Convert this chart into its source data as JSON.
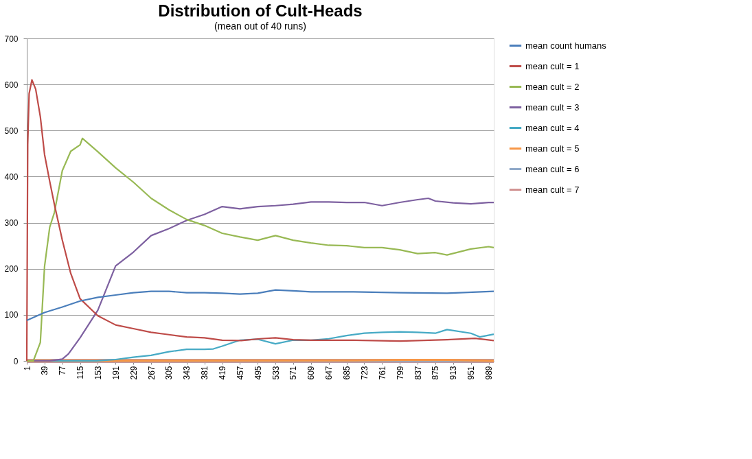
{
  "chart_data": {
    "type": "line",
    "title": "Distribution of Cult-Heads",
    "subtitle": "(mean out of 40 runs)",
    "xlim": [
      1,
      1000
    ],
    "xticks": [
      1,
      39,
      77,
      115,
      153,
      191,
      229,
      267,
      305,
      343,
      381,
      419,
      457,
      495,
      533,
      571,
      609,
      647,
      685,
      723,
      761,
      799,
      837,
      875,
      913,
      951,
      989
    ],
    "ylim": [
      0,
      700
    ],
    "yticks": [
      0,
      100,
      200,
      300,
      400,
      500,
      600,
      700
    ],
    "grid": "y",
    "legend": "right",
    "marker": "none",
    "line_style": "solid",
    "series": [
      {
        "name": "mean count humans",
        "color": "#4a7ebb",
        "x": [
          1,
          39,
          77,
          115,
          153,
          191,
          229,
          267,
          305,
          343,
          381,
          419,
          457,
          495,
          533,
          571,
          609,
          700,
          800,
          900,
          1000
        ],
        "values": [
          88,
          105,
          117,
          130,
          138,
          143,
          148,
          151,
          151,
          148,
          148,
          147,
          145,
          147,
          154,
          152,
          150,
          150,
          148,
          147,
          151
        ]
      },
      {
        "name": "mean cult = 1",
        "color": "#be4b48",
        "x": [
          1,
          3,
          6,
          12,
          20,
          30,
          39,
          50,
          60,
          77,
          95,
          115,
          153,
          191,
          229,
          267,
          305,
          343,
          381,
          419,
          460,
          500,
          533,
          571,
          609,
          700,
          800,
          900,
          960,
          1000
        ],
        "values": [
          0,
          470,
          580,
          610,
          590,
          530,
          448,
          390,
          340,
          262,
          190,
          135,
          98,
          78,
          70,
          62,
          57,
          52,
          50,
          45,
          44,
          48,
          50,
          46,
          45,
          45,
          43,
          46,
          49,
          44
        ]
      },
      {
        "name": "mean cult = 2",
        "color": "#98b954",
        "x": [
          1,
          15,
          30,
          39,
          50,
          60,
          77,
          95,
          115,
          120,
          153,
          191,
          229,
          267,
          305,
          343,
          381,
          419,
          457,
          495,
          533,
          571,
          609,
          647,
          685,
          723,
          761,
          799,
          837,
          875,
          900,
          951,
          989,
          1000
        ],
        "values": [
          0,
          0,
          40,
          205,
          290,
          322,
          413,
          455,
          469,
          483,
          454,
          419,
          388,
          353,
          328,
          307,
          294,
          277,
          269,
          262,
          272,
          262,
          256,
          251,
          250,
          246,
          246,
          241,
          233,
          235,
          230,
          243,
          248,
          246
        ]
      },
      {
        "name": "mean cult = 3",
        "color": "#7d60a0",
        "x": [
          1,
          50,
          77,
          90,
          115,
          153,
          191,
          229,
          267,
          305,
          343,
          381,
          419,
          457,
          495,
          533,
          571,
          609,
          647,
          685,
          723,
          761,
          799,
          837,
          860,
          875,
          913,
          951,
          989,
          1000
        ],
        "values": [
          0,
          0,
          4,
          15,
          50,
          110,
          206,
          236,
          272,
          287,
          305,
          318,
          335,
          330,
          335,
          337,
          340,
          345,
          345,
          344,
          344,
          337,
          344,
          350,
          353,
          347,
          343,
          341,
          344,
          344
        ]
      },
      {
        "name": "mean cult = 4",
        "color": "#46aac5",
        "x": [
          1,
          150,
          191,
          229,
          267,
          305,
          343,
          381,
          400,
          419,
          457,
          495,
          533,
          571,
          609,
          647,
          685,
          723,
          761,
          799,
          837,
          875,
          900,
          951,
          970,
          1000
        ],
        "values": [
          0,
          0,
          3,
          8,
          12,
          20,
          25,
          25,
          26,
          32,
          45,
          47,
          37,
          45,
          45,
          48,
          55,
          60,
          62,
          63,
          62,
          60,
          68,
          60,
          52,
          58
        ]
      },
      {
        "name": "mean cult = 5",
        "color": "#f79646",
        "x": [
          1,
          700,
          800,
          900,
          1000
        ],
        "values": [
          0,
          1,
          2,
          2,
          0
        ]
      },
      {
        "name": "mean cult = 6",
        "color": "#8fa8c8",
        "x": [
          1,
          1000
        ],
        "values": [
          0,
          0
        ]
      },
      {
        "name": "mean cult = 7",
        "color": "#d19392",
        "x": [
          1,
          1000
        ],
        "values": [
          0,
          0
        ]
      }
    ]
  }
}
